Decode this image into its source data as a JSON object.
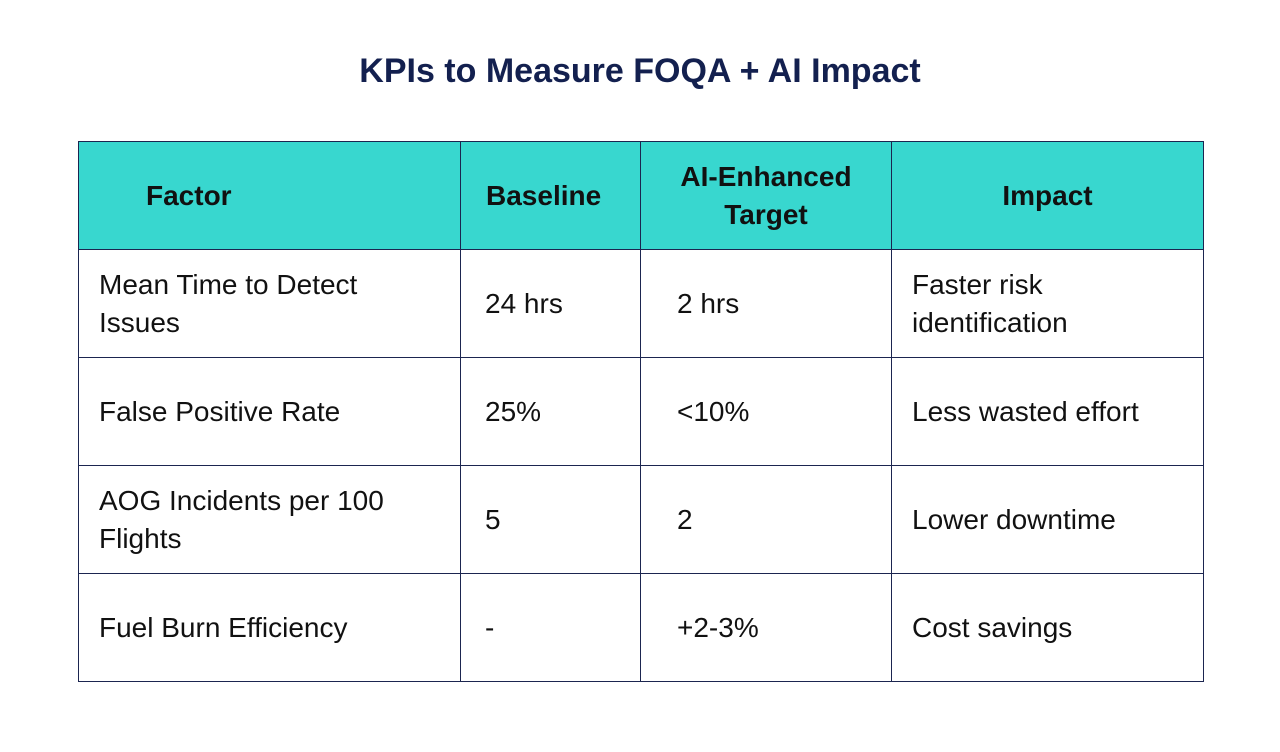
{
  "title": "KPIs to Measure FOQA + AI Impact",
  "colors": {
    "header_bg": "#38d7cf",
    "title": "#13204f",
    "border": "#1b2550"
  },
  "table": {
    "headers": [
      "Factor",
      "Baseline",
      "AI-Enhanced Target",
      "Impact"
    ],
    "rows": [
      [
        "Mean Time to Detect Issues",
        "24 hrs",
        "2 hrs",
        "Faster risk identification"
      ],
      [
        "False Positive Rate",
        "25%",
        "<10%",
        "Less wasted effort"
      ],
      [
        "AOG Incidents per 100 Flights",
        "5",
        "2",
        "Lower downtime"
      ],
      [
        "Fuel Burn Efficiency",
        "-",
        "+2-3%",
        "Cost savings"
      ]
    ]
  }
}
